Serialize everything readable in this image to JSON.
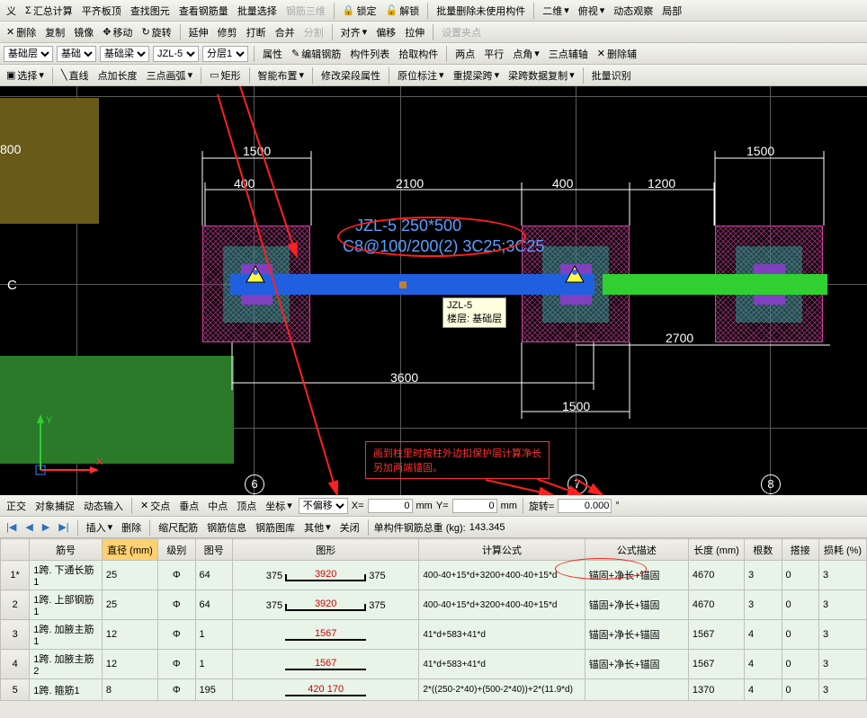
{
  "toolbars": {
    "row1": [
      "义",
      "汇总计算",
      "平齐板顶",
      "查找图元",
      "查看钢筋量",
      "批量选择",
      "钢筋三维",
      "锁定",
      "解锁",
      "批量删除未使用构件",
      "二维",
      "俯视",
      "动态观察",
      "局部"
    ],
    "row2": [
      "删除",
      "复制",
      "镜像",
      "移动",
      "旋转",
      "延伸",
      "修剪",
      "打断",
      "合并",
      "分割",
      "对齐",
      "偏移",
      "拉伸",
      "设置夹点"
    ],
    "row3": {
      "layer": "基础层",
      "cat": "基础",
      "subcat": "基础梁",
      "member": "JZL-5",
      "layer2": "分层1",
      "buttons": [
        "属性",
        "编辑钢筋",
        "构件列表",
        "拾取构件",
        "两点",
        "平行",
        "点角",
        "三点辅轴",
        "删除辅"
      ]
    },
    "row4": [
      "选择",
      "直线",
      "点加长度",
      "三点画弧",
      "矩形",
      "智能布置",
      "修改梁段属性",
      "原位标注",
      "重提梁跨",
      "梁跨数据复制",
      "批量识别"
    ]
  },
  "canvas": {
    "dims": {
      "d800": "800",
      "d1500a": "1500",
      "d400a": "400",
      "d2100": "2100",
      "d400b": "400",
      "d1200": "1200",
      "d1500b": "1500",
      "d3600": "3600",
      "d1500c": "1500",
      "d2700": "2700"
    },
    "beam_label1": "JZL-5 250*500",
    "beam_label2": "C8@100/200(2) 3C25;3C25",
    "tooltip_line1": "JZL-5",
    "tooltip_line2": "楼层: 基础层",
    "anno_line1": "画到柱里时按柱外边扣保护层计算净长",
    "anno_line2": "另加两端锚固。",
    "axis_c": "C",
    "bubble6": "6",
    "bubble7": "7",
    "bubble8": "8",
    "axis_y": "Y",
    "axis_x": "X"
  },
  "status_bar": {
    "items": [
      "正交",
      "对象捕捉",
      "动态输入",
      "交点",
      "垂点",
      "中点",
      "顶点",
      "坐标"
    ],
    "offset_label": "不偏移",
    "x_label": "X=",
    "x_val": "0",
    "x_unit": "mm",
    "y_label": "Y=",
    "y_val": "0",
    "y_unit": "mm",
    "rot_label": "旋转=",
    "rot_val": "0.000",
    "rot_unit": "°"
  },
  "action_bar": {
    "items": [
      "插入",
      "删除",
      "缩尺配筋",
      "钢筋信息",
      "钢筋图库",
      "其他",
      "关闭"
    ],
    "total_label": "单构件钢筋总重 (kg):",
    "total_value": "143.345"
  },
  "table": {
    "headers": [
      "筋号",
      "直径 (mm)",
      "级别",
      "图号",
      "图形",
      "计算公式",
      "公式描述",
      "长度 (mm)",
      "根数",
      "搭接",
      "损耗 (%)"
    ],
    "rows": [
      {
        "idx": "1*",
        "name": "1跨. 下通长筋1",
        "dia": "25",
        "grade": "Φ",
        "figno": "64",
        "e1": "375",
        "mid": "3920",
        "e2": "375",
        "formula": "400-40+15*d+3200+400-40+15*d",
        "desc": "锚固+净长+锚固",
        "len": "4670",
        "n": "3",
        "lap": "0",
        "loss": "3"
      },
      {
        "idx": "2",
        "name": "1跨. 上部钢筋1",
        "dia": "25",
        "grade": "Φ",
        "figno": "64",
        "e1": "375",
        "mid": "3920",
        "e2": "375",
        "formula": "400-40+15*d+3200+400-40+15*d",
        "desc": "锚固+净长+锚固",
        "len": "4670",
        "n": "3",
        "lap": "0",
        "loss": "3"
      },
      {
        "idx": "3",
        "name": "1跨. 加腋主筋1",
        "dia": "12",
        "grade": "Φ",
        "figno": "1",
        "e1": "",
        "mid": "1567",
        "e2": "",
        "formula": "41*d+583+41*d",
        "desc": "锚固+净长+锚固",
        "len": "1567",
        "n": "4",
        "lap": "0",
        "loss": "3"
      },
      {
        "idx": "4",
        "name": "1跨. 加腋主筋2",
        "dia": "12",
        "grade": "Φ",
        "figno": "1",
        "e1": "",
        "mid": "1567",
        "e2": "",
        "formula": "41*d+583+41*d",
        "desc": "锚固+净长+锚固",
        "len": "1567",
        "n": "4",
        "lap": "0",
        "loss": "3"
      },
      {
        "idx": "5",
        "name": "1跨. 箍筋1",
        "dia": "8",
        "grade": "Φ",
        "figno": "195",
        "e1": "",
        "mid": "420 170",
        "e2": "",
        "formula": "2*((250-2*40)+(500-2*40))+2*(11.9*d)",
        "desc": "",
        "len": "1370",
        "n": "4",
        "lap": "0",
        "loss": "3"
      }
    ]
  },
  "colors": {
    "highlight_header": "#ffd070"
  }
}
